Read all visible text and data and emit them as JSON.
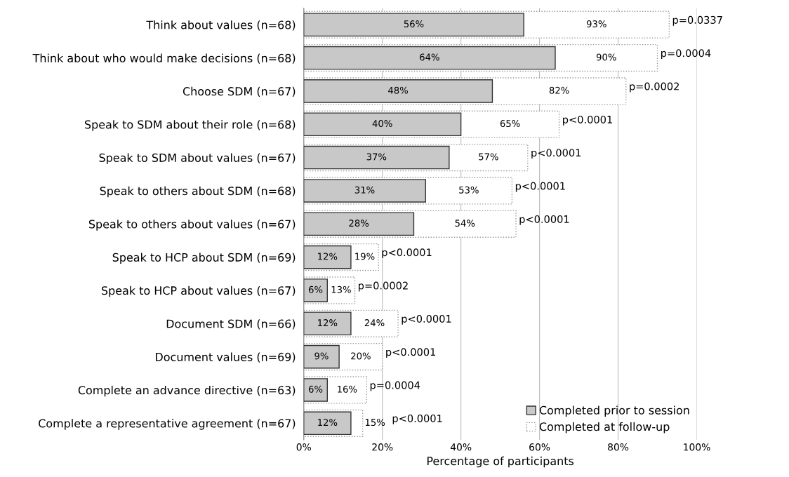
{
  "chart_data": {
    "type": "bar",
    "orientation": "horizontal",
    "stacked": false,
    "categories": [
      "Think about values (n=68)",
      "Think about who would make decisions (n=68)",
      "Choose SDM (n=67)",
      "Speak to SDM about their role (n=68)",
      "Speak to SDM about values (n=67)",
      "Speak to others about SDM (n=68)",
      "Speak to others about values (n=67)",
      "Speak to HCP about SDM (n=69)",
      "Speak to HCP about values (n=67)",
      "Document SDM (n=66)",
      "Document values (n=69)",
      "Complete an advance directive (n=63)",
      "Complete a representative agreement (n=67)"
    ],
    "series": [
      {
        "name": "Completed at follow-up",
        "color": "#ffffff",
        "line_style": "dotted",
        "values": [
          93,
          90,
          82,
          65,
          57,
          53,
          54,
          19,
          13,
          24,
          20,
          16,
          15
        ],
        "value_labels": [
          "93%",
          "90%",
          "82%",
          "65%",
          "57%",
          "53%",
          "54%",
          "19%",
          "13%",
          "24%",
          "20%",
          "16%",
          "15%"
        ]
      },
      {
        "name": "Completed prior to session",
        "color": "#c8c8c8",
        "line_style": "solid",
        "values": [
          56,
          64,
          48,
          40,
          37,
          31,
          28,
          12,
          6,
          12,
          9,
          6,
          12
        ],
        "value_labels": [
          "56%",
          "64%",
          "48%",
          "40%",
          "37%",
          "31%",
          "28%",
          "12%",
          "6%",
          "12%",
          "9%",
          "6%",
          "12%"
        ]
      }
    ],
    "xlabel": "Percentage of participants",
    "xlim": [
      0,
      100
    ],
    "xticks": [
      {
        "value": 0,
        "label": "0%"
      },
      {
        "value": 20,
        "label": "20%"
      },
      {
        "value": 40,
        "label": "40%"
      },
      {
        "value": 60,
        "label": "60%"
      },
      {
        "value": 80,
        "label": "80%"
      },
      {
        "value": 100,
        "label": "100%"
      }
    ],
    "grid": "x",
    "legend": "bottom right",
    "annotations": [
      {
        "text": "p=0.0337",
        "x": 93,
        "y": "Think about values (n=68)"
      },
      {
        "text": "p=0.0004",
        "x": 90,
        "y": "Think about who would make decisions (n=68)"
      },
      {
        "text": "p=0.0002",
        "x": 82,
        "y": "Choose SDM (n=67)"
      },
      {
        "text": "p<0.0001",
        "x": 65,
        "y": "Speak to SDM about their role (n=68)"
      },
      {
        "text": "p<0.0001",
        "x": 57,
        "y": "Speak to SDM about values (n=67)"
      },
      {
        "text": "p<0.0001",
        "x": 53,
        "y": "Speak to others about SDM (n=68)"
      },
      {
        "text": "p<0.0001",
        "x": 54,
        "y": "Speak to others about values (n=67)"
      },
      {
        "text": "p<0.0001",
        "x": 19,
        "y": "Speak to HCP about SDM (n=69)"
      },
      {
        "text": "p=0.0002",
        "x": 13,
        "y": "Speak to HCP about values (n=67)"
      },
      {
        "text": "p<0.0001",
        "x": 24,
        "y": "Document SDM (n=66)"
      },
      {
        "text": "p<0.0001",
        "x": 20,
        "y": "Document values (n=69)"
      },
      {
        "text": "p=0.0004",
        "x": 16,
        "y": "Complete an advance directive (n=63)"
      },
      {
        "text": "p<0.0001",
        "x": 15,
        "y": "Complete a representative agreement (n=67)"
      }
    ]
  }
}
